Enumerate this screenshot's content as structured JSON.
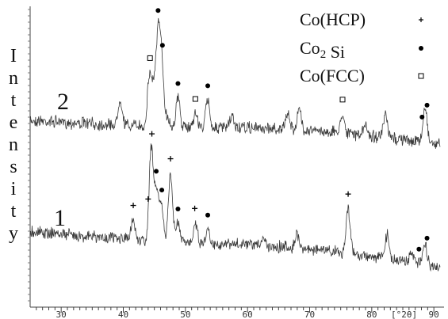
{
  "chart_data": {
    "type": "line",
    "ylabel": "Intensity",
    "xlabel": "[°2θ]",
    "xlim": [
      25,
      91
    ],
    "x_ticks": [
      "30",
      "40",
      "50",
      "60",
      "70",
      "80",
      "90"
    ],
    "grid": false,
    "legend": [
      {
        "label": "Co(HCP)",
        "marker": "plus"
      },
      {
        "label": "Co₂ Si",
        "marker": "dot"
      },
      {
        "label": "Co(FCC)",
        "marker": "square"
      }
    ],
    "series": [
      {
        "name": "2",
        "peaks": [
          {
            "x": 39.5,
            "y": 0.55
          },
          {
            "x": 44.2,
            "y": 1.05
          },
          {
            "x": 44.9,
            "y": 0.8
          },
          {
            "x": 45.6,
            "y": 1.85
          },
          {
            "x": 46.2,
            "y": 1.3
          },
          {
            "x": 47.1,
            "y": 0.2
          },
          {
            "x": 48.8,
            "y": 0.62
          },
          {
            "x": 51.6,
            "y": 0.3
          },
          {
            "x": 53.6,
            "y": 0.58
          },
          {
            "x": 57.5,
            "y": 0.22
          },
          {
            "x": 66.5,
            "y": 0.32
          },
          {
            "x": 68.3,
            "y": 0.42
          },
          {
            "x": 75.3,
            "y": 0.4
          },
          {
            "x": 79.0,
            "y": 0.2
          },
          {
            "x": 82.2,
            "y": 0.45
          },
          {
            "x": 88.6,
            "y": 0.75
          }
        ],
        "markers": [
          {
            "x": 45.6,
            "symbol": "dot"
          },
          {
            "x": 46.3,
            "symbol": "dot"
          },
          {
            "x": 44.3,
            "symbol": "square"
          },
          {
            "x": 48.8,
            "symbol": "dot"
          },
          {
            "x": 51.6,
            "symbol": "square"
          },
          {
            "x": 53.6,
            "symbol": "dot"
          },
          {
            "x": 75.3,
            "symbol": "square"
          },
          {
            "x": 88.1,
            "symbol": "dot"
          },
          {
            "x": 88.9,
            "symbol": "dot"
          }
        ]
      },
      {
        "name": "1",
        "peaks": [
          {
            "x": 41.6,
            "y": 0.42
          },
          {
            "x": 44.5,
            "y": 1.95
          },
          {
            "x": 45.3,
            "y": 1.05
          },
          {
            "x": 46.1,
            "y": 0.8
          },
          {
            "x": 47.6,
            "y": 1.45
          },
          {
            "x": 48.8,
            "y": 0.4
          },
          {
            "x": 51.6,
            "y": 0.45
          },
          {
            "x": 53.6,
            "y": 0.3
          },
          {
            "x": 62.5,
            "y": 0.18
          },
          {
            "x": 68.0,
            "y": 0.28
          },
          {
            "x": 76.2,
            "y": 0.95
          },
          {
            "x": 82.5,
            "y": 0.5
          },
          {
            "x": 86.5,
            "y": 0.2
          },
          {
            "x": 88.6,
            "y": 0.4
          }
        ],
        "markers": [
          {
            "x": 41.6,
            "symbol": "plus"
          },
          {
            "x": 44.0,
            "symbol": "plus"
          },
          {
            "x": 44.6,
            "symbol": "plus"
          },
          {
            "x": 45.3,
            "symbol": "dot"
          },
          {
            "x": 46.2,
            "symbol": "dot"
          },
          {
            "x": 47.6,
            "symbol": "plus"
          },
          {
            "x": 48.8,
            "symbol": "dot"
          },
          {
            "x": 51.5,
            "symbol": "plus"
          },
          {
            "x": 53.6,
            "symbol": "dot"
          },
          {
            "x": 76.2,
            "symbol": "plus"
          },
          {
            "x": 87.6,
            "symbol": "dot"
          },
          {
            "x": 88.9,
            "symbol": "dot"
          }
        ]
      }
    ]
  }
}
